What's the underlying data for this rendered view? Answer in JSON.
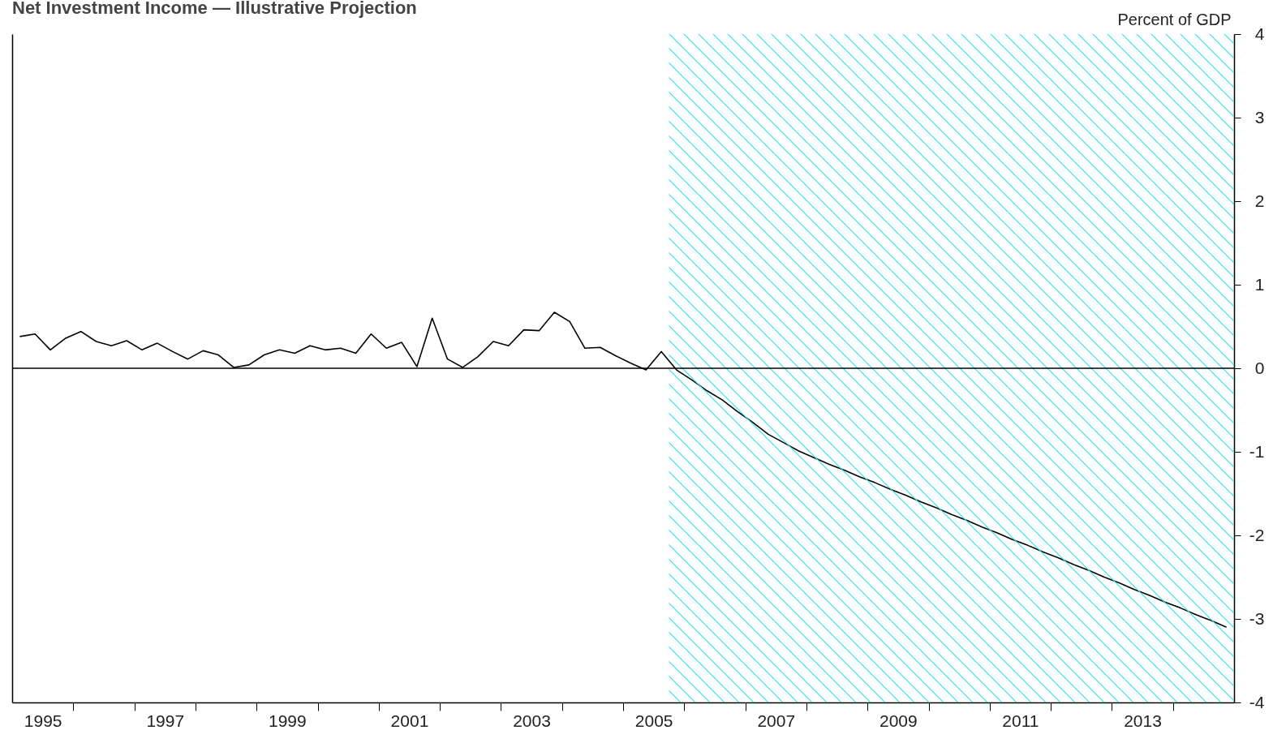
{
  "chart_data": {
    "type": "line",
    "title": "Net Investment Income — Illustrative Projection",
    "ylabel": "Percent of GDP",
    "x": [
      1995.125,
      1995.375,
      1995.625,
      1995.875,
      1996.125,
      1996.375,
      1996.625,
      1996.875,
      1997.125,
      1997.375,
      1997.625,
      1997.875,
      1998.125,
      1998.375,
      1998.625,
      1998.875,
      1999.125,
      1999.375,
      1999.625,
      1999.875,
      2000.125,
      2000.375,
      2000.625,
      2000.875,
      2001.125,
      2001.375,
      2001.625,
      2001.875,
      2002.125,
      2002.375,
      2002.625,
      2002.875,
      2003.125,
      2003.375,
      2003.625,
      2003.875,
      2004.125,
      2004.375,
      2004.625,
      2004.875,
      2005.125,
      2005.375,
      2005.625,
      2005.875,
      2006.125,
      2006.375,
      2006.625,
      2006.875,
      2007.125,
      2007.375,
      2007.625,
      2007.875,
      2008.125,
      2008.375,
      2008.625,
      2008.875,
      2009.125,
      2009.375,
      2009.625,
      2009.875,
      2010.125,
      2010.375,
      2010.625,
      2010.875,
      2011.125,
      2011.375,
      2011.625,
      2011.875,
      2012.125,
      2012.375,
      2012.625,
      2012.875,
      2013.125,
      2013.375,
      2013.625,
      2013.875,
      2014.125,
      2014.375,
      2014.625,
      2014.875
    ],
    "series": [
      {
        "color": "#000000",
        "values": [
          0.38,
          0.41,
          0.22,
          0.36,
          0.44,
          0.32,
          0.27,
          0.33,
          0.22,
          0.3,
          0.2,
          0.11,
          0.21,
          0.16,
          0.01,
          0.04,
          0.16,
          0.22,
          0.18,
          0.27,
          0.22,
          0.24,
          0.18,
          0.41,
          0.24,
          0.31,
          0.02,
          0.6,
          0.11,
          0.01,
          0.14,
          0.32,
          0.27,
          0.46,
          0.45,
          0.67,
          0.56,
          0.24,
          0.25,
          0.15,
          0.06,
          -0.02,
          0.2,
          -0.02,
          -0.14,
          -0.27,
          -0.38,
          -0.52,
          -0.65,
          -0.79,
          -0.89,
          -0.99,
          -1.07,
          -1.15,
          -1.22,
          -1.3,
          -1.37,
          -1.45,
          -1.52,
          -1.6,
          -1.67,
          -1.75,
          -1.82,
          -1.9,
          -1.97,
          -2.05,
          -2.12,
          -2.2,
          -2.27,
          -2.35,
          -2.42,
          -2.5,
          -2.57,
          -2.65,
          -2.72,
          -2.8,
          -2.87,
          -2.95,
          -3.02,
          -3.1
        ]
      }
    ],
    "xlim": [
      1995,
      2015
    ],
    "xticks": [
      {
        "value": 1995.5,
        "label": "1995"
      },
      {
        "value": 1996,
        "label": null
      },
      {
        "value": 1997,
        "label": null
      },
      {
        "value": 1997.5,
        "label": "1997"
      },
      {
        "value": 1998,
        "label": null
      },
      {
        "value": 1999,
        "label": null
      },
      {
        "value": 1999.5,
        "label": "1999"
      },
      {
        "value": 2000,
        "label": null
      },
      {
        "value": 2001,
        "label": null
      },
      {
        "value": 2001.5,
        "label": "2001"
      },
      {
        "value": 2002,
        "label": null
      },
      {
        "value": 2003,
        "label": null
      },
      {
        "value": 2003.5,
        "label": "2003"
      },
      {
        "value": 2004,
        "label": null
      },
      {
        "value": 2005,
        "label": null
      },
      {
        "value": 2005.5,
        "label": "2005"
      },
      {
        "value": 2006,
        "label": null
      },
      {
        "value": 2007,
        "label": null
      },
      {
        "value": 2007.5,
        "label": "2007"
      },
      {
        "value": 2008,
        "label": null
      },
      {
        "value": 2009,
        "label": null
      },
      {
        "value": 2009.5,
        "label": "2009"
      },
      {
        "value": 2010,
        "label": null
      },
      {
        "value": 2011,
        "label": null
      },
      {
        "value": 2011.5,
        "label": "2011"
      },
      {
        "value": 2012,
        "label": null
      },
      {
        "value": 2013,
        "label": null
      },
      {
        "value": 2013.5,
        "label": "2013"
      },
      {
        "value": 2014,
        "label": null
      }
    ],
    "ylim": [
      -4,
      4
    ],
    "yticks": [
      -4,
      -3,
      -2,
      -1,
      0,
      1,
      2,
      3,
      4
    ],
    "ref_lines": [
      {
        "axis": "y",
        "value": 0,
        "color": "#000000"
      }
    ],
    "bands": [
      {
        "axis": "x",
        "from": 2005.75,
        "to": 2015,
        "color": "#33e0ea"
      }
    ],
    "grid": false
  }
}
